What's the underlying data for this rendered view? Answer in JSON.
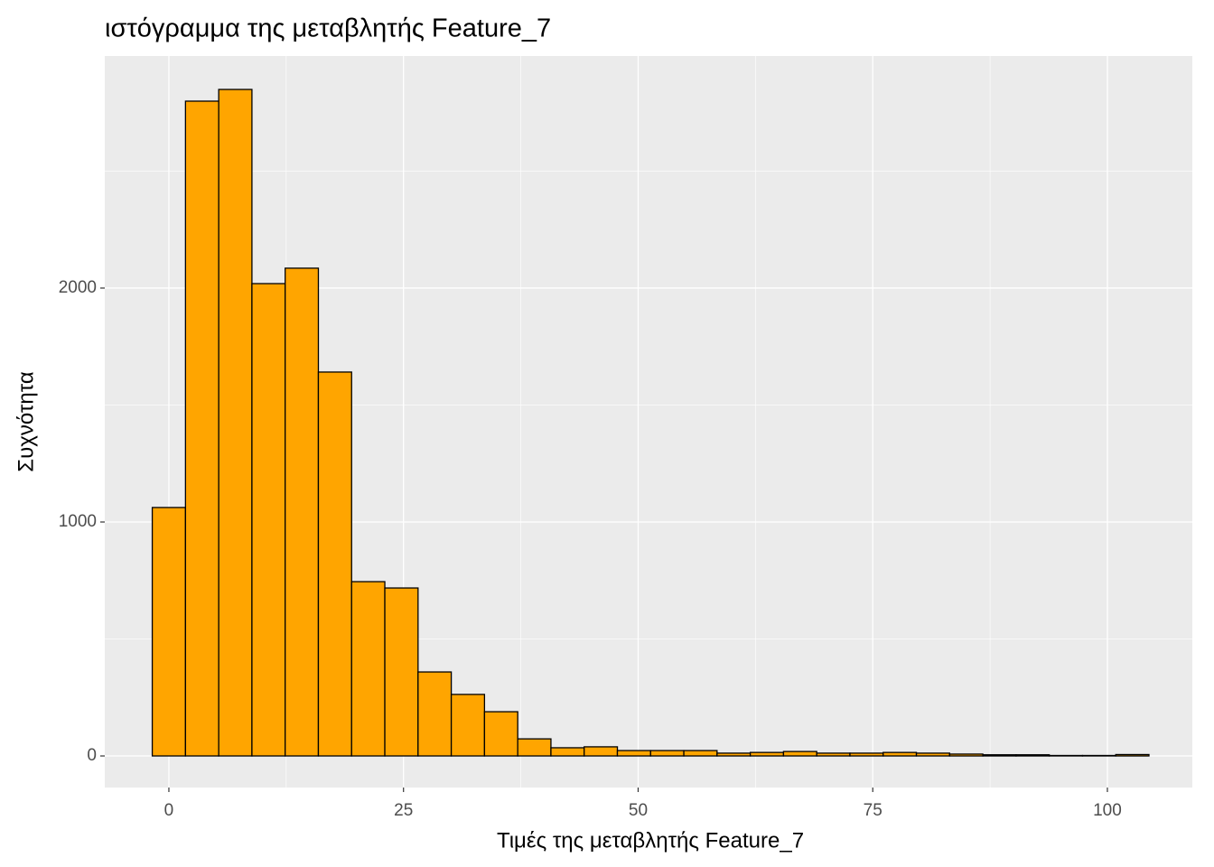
{
  "chart_data": {
    "type": "histogram",
    "title": "ιστόγραμμα της μεταβλητής Feature_7",
    "x_label": "Τιμές της μεταβλητής Feature_7",
    "y_label": "Συχνότητα",
    "bins": [
      -1.77,
      1.77,
      5.31,
      8.85,
      12.39,
      15.93,
      19.47,
      23.01,
      26.55,
      30.09,
      33.63,
      37.17,
      40.71,
      44.25,
      47.79,
      51.33,
      54.87,
      58.41,
      61.95,
      65.49,
      69.03,
      72.57,
      76.11,
      79.65,
      83.19,
      86.73,
      90.27,
      93.81,
      97.35,
      100.89,
      104.43
    ],
    "values": [
      1062,
      2799,
      2849,
      2019,
      2085,
      1641,
      745,
      718,
      359,
      263,
      189,
      73,
      35,
      39,
      23,
      23,
      23,
      12,
      15,
      19,
      12,
      12,
      15,
      12,
      8,
      5,
      5,
      2,
      2,
      6
    ],
    "color": "#ffa500",
    "edge_color": "#000000",
    "xlim": [
      -6.83,
      109.05
    ],
    "ylim": [
      -135,
      2992
    ],
    "xticks": [
      0,
      25,
      50,
      75,
      100
    ],
    "yticks": [
      0,
      1000,
      2000
    ],
    "x_minor_grid": [
      12.5,
      37.5,
      62.5,
      87.5
    ],
    "y_minor_grid": [
      500,
      1500,
      2500
    ],
    "grid": true
  }
}
